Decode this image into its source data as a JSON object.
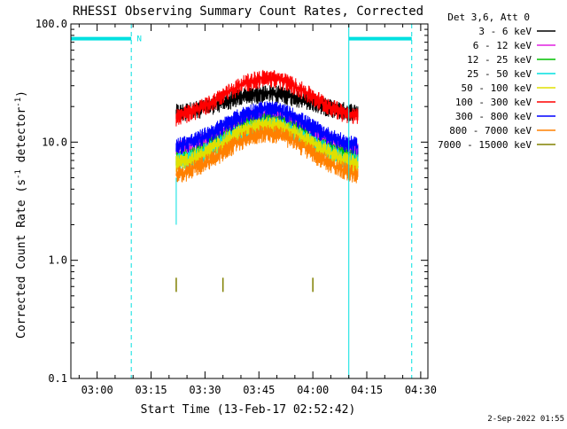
{
  "chart_data": {
    "type": "line",
    "title": "RHESSI Observing Summary Count Rates, Corrected",
    "ylabel_main": "Corrected Count Rate (s",
    "ylabel_sup1": "-1",
    "ylabel_mid": " detector",
    "ylabel_sup2": "-1",
    "ylabel_end": ")",
    "xlabel": "Start Time (13-Feb-17 02:52:42)",
    "timestamp": "2-Sep-2022 01:55",
    "y_scale": "log",
    "ylim": [
      0.1,
      100
    ],
    "y_ticks": [
      {
        "value": 0.1,
        "label": "0.1"
      },
      {
        "value": 1,
        "label": "1.0"
      },
      {
        "value": 10,
        "label": "10.0"
      },
      {
        "value": 100,
        "label": "100.0"
      }
    ],
    "x_range": [
      "02:52:42",
      "04:32:00"
    ],
    "x_ticks": [
      {
        "value": "03:00",
        "label": "03:00"
      },
      {
        "value": "03:15",
        "label": "03:15"
      },
      {
        "value": "03:30",
        "label": "03:30"
      },
      {
        "value": "03:45",
        "label": "03:45"
      },
      {
        "value": "04:00",
        "label": "04:00"
      },
      {
        "value": "04:15",
        "label": "04:15"
      },
      {
        "value": "04:30",
        "label": "04:30"
      }
    ],
    "legend": {
      "position": "right",
      "header": "Det 3,6, Att 0"
    },
    "data_start": "03:22:00",
    "data_end": "04:12:30",
    "series": [
      {
        "name": "3 - 6 keV",
        "color": "#000000",
        "edge_value": 17,
        "peak_value": 26
      },
      {
        "name": "6 - 12 keV",
        "color": "#e020e0",
        "edge_value": 8,
        "peak_value": 17
      },
      {
        "name": "12 - 25 keV",
        "color": "#00c000",
        "edge_value": 6.5,
        "peak_value": 15
      },
      {
        "name": "25 - 50 keV",
        "color": "#00e0e0",
        "edge_value": 6.2,
        "peak_value": 14
      },
      {
        "name": "50 - 100 keV",
        "color": "#e0e000",
        "edge_value": 6,
        "peak_value": 14
      },
      {
        "name": "100 - 300 keV",
        "color": "#ff0000",
        "edge_value": 15,
        "peak_value": 35
      },
      {
        "name": "300 - 800 keV",
        "color": "#0000ff",
        "edge_value": 8.5,
        "peak_value": 19
      },
      {
        "name": "800 - 7000 keV",
        "color": "#ff8000",
        "edge_value": 4.8,
        "peak_value": 12
      },
      {
        "name": "7000 - 15000 keV",
        "color": "#808000",
        "edge_value": 0.62,
        "peak_value": 0.62
      }
    ],
    "flags": [
      {
        "label": "N",
        "color": "#00e0e0",
        "start": "02:52:42",
        "end": "03:09:30",
        "value": 75
      },
      {
        "label": "",
        "color": "#00e0e0",
        "start": "04:10:00",
        "end": "04:27:30",
        "value": 75
      }
    ],
    "markers_solid": [
      "02:52:42",
      "04:10:00"
    ],
    "markers_dashed": [
      "03:09:30",
      "04:27:30"
    ],
    "spike_times": [
      "03:22:00",
      "03:35:00",
      "04:00:00"
    ],
    "spike_value": 0.62,
    "min_spike": {
      "time": "03:22:00",
      "value": 2.0
    }
  }
}
